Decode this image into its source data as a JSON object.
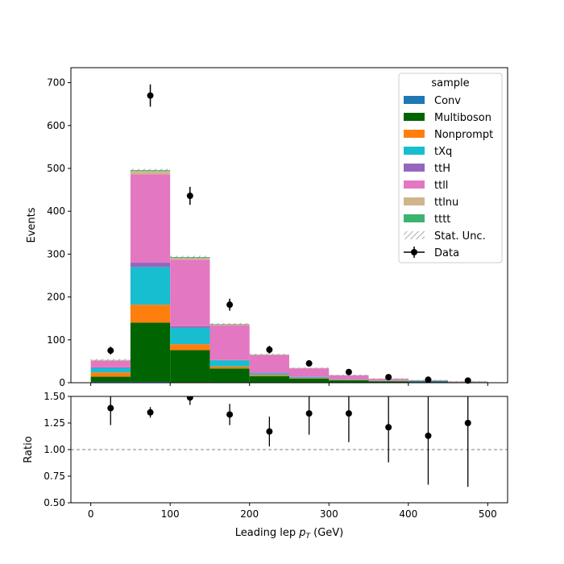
{
  "chart_data": [
    {
      "type": "bar",
      "stacked": true,
      "ylabel": "Events",
      "ylim": [
        0,
        735
      ],
      "xlim": [
        -25,
        525
      ],
      "yticks": [
        0,
        100,
        200,
        300,
        400,
        500,
        600,
        700
      ],
      "bin_edges": [
        0,
        50,
        100,
        150,
        200,
        250,
        300,
        350,
        400,
        450,
        500
      ],
      "series": [
        {
          "name": "Conv",
          "color": "#1f77b4",
          "values": [
            2,
            2,
            1,
            1,
            1,
            1,
            0.5,
            0.5,
            3,
            0.5
          ]
        },
        {
          "name": "Multiboson",
          "color": "#006400",
          "values": [
            12,
            138,
            75,
            32,
            14,
            9,
            5,
            3,
            1,
            0.5
          ]
        },
        {
          "name": "Nonprompt",
          "color": "#ff7f0e",
          "values": [
            10,
            42,
            14,
            5,
            3,
            1,
            1,
            0.5,
            0.5,
            0.5
          ]
        },
        {
          "name": "tXq",
          "color": "#17becf",
          "values": [
            10,
            88,
            38,
            14,
            4,
            2,
            1,
            0.5,
            0.5,
            0.5
          ]
        },
        {
          "name": "ttH",
          "color": "#9467bd",
          "values": [
            2,
            10,
            4,
            1,
            0.5,
            0.5,
            0.5,
            0.5,
            0,
            0
          ]
        },
        {
          "name": "ttll",
          "color": "#e377c2",
          "values": [
            15,
            206,
            155,
            81,
            42,
            20,
            9,
            4,
            1,
            1
          ]
        },
        {
          "name": "ttlnu",
          "color": "#d2b48c",
          "values": [
            2,
            8,
            4,
            2,
            1,
            0.5,
            0.5,
            0.5,
            0,
            0
          ]
        },
        {
          "name": "tttt",
          "color": "#3cb371",
          "values": [
            0.2,
            2,
            2,
            1,
            0.5,
            0.3,
            0.2,
            0.2,
            0.1,
            0.1
          ]
        }
      ],
      "stat_unc": {
        "name": "Stat. Unc.",
        "values": [
          2,
          3,
          3,
          2,
          1.5,
          1,
          1,
          0.7,
          0.5,
          0.5
        ]
      },
      "data": {
        "name": "Data",
        "x": [
          25,
          75,
          125,
          175,
          225,
          275,
          325,
          375,
          425,
          475
        ],
        "y": [
          75,
          670,
          436,
          182,
          77,
          45,
          25,
          13,
          7,
          5
        ],
        "yerr": [
          9,
          26,
          21,
          14,
          9,
          7,
          5,
          3.6,
          2.6,
          2.2
        ]
      },
      "legend": {
        "title": "sample",
        "position": "top-right"
      }
    },
    {
      "type": "scatter",
      "xlabel_main": "Leading lep ",
      "xlabel_sym": "p",
      "xlabel_sub": "T",
      "xlabel_unit": " (GeV)",
      "ylabel": "Ratio",
      "ylim": [
        0.5,
        1.5
      ],
      "xlim": [
        -25,
        525
      ],
      "yticks": [
        "0.50",
        "0.75",
        "1.00",
        "1.25",
        "1.50"
      ],
      "xticks": [
        0,
        100,
        200,
        300,
        400,
        500
      ],
      "reference_line": 1.0,
      "x": [
        25,
        75,
        125,
        175,
        225,
        275,
        325,
        375,
        425,
        475
      ],
      "y": [
        1.39,
        1.35,
        1.49,
        1.33,
        1.17,
        1.34,
        1.34,
        1.21,
        1.13,
        1.25
      ],
      "yerr": [
        0.16,
        0.05,
        0.07,
        0.1,
        0.14,
        0.2,
        0.27,
        0.33,
        0.46,
        0.6
      ]
    }
  ]
}
